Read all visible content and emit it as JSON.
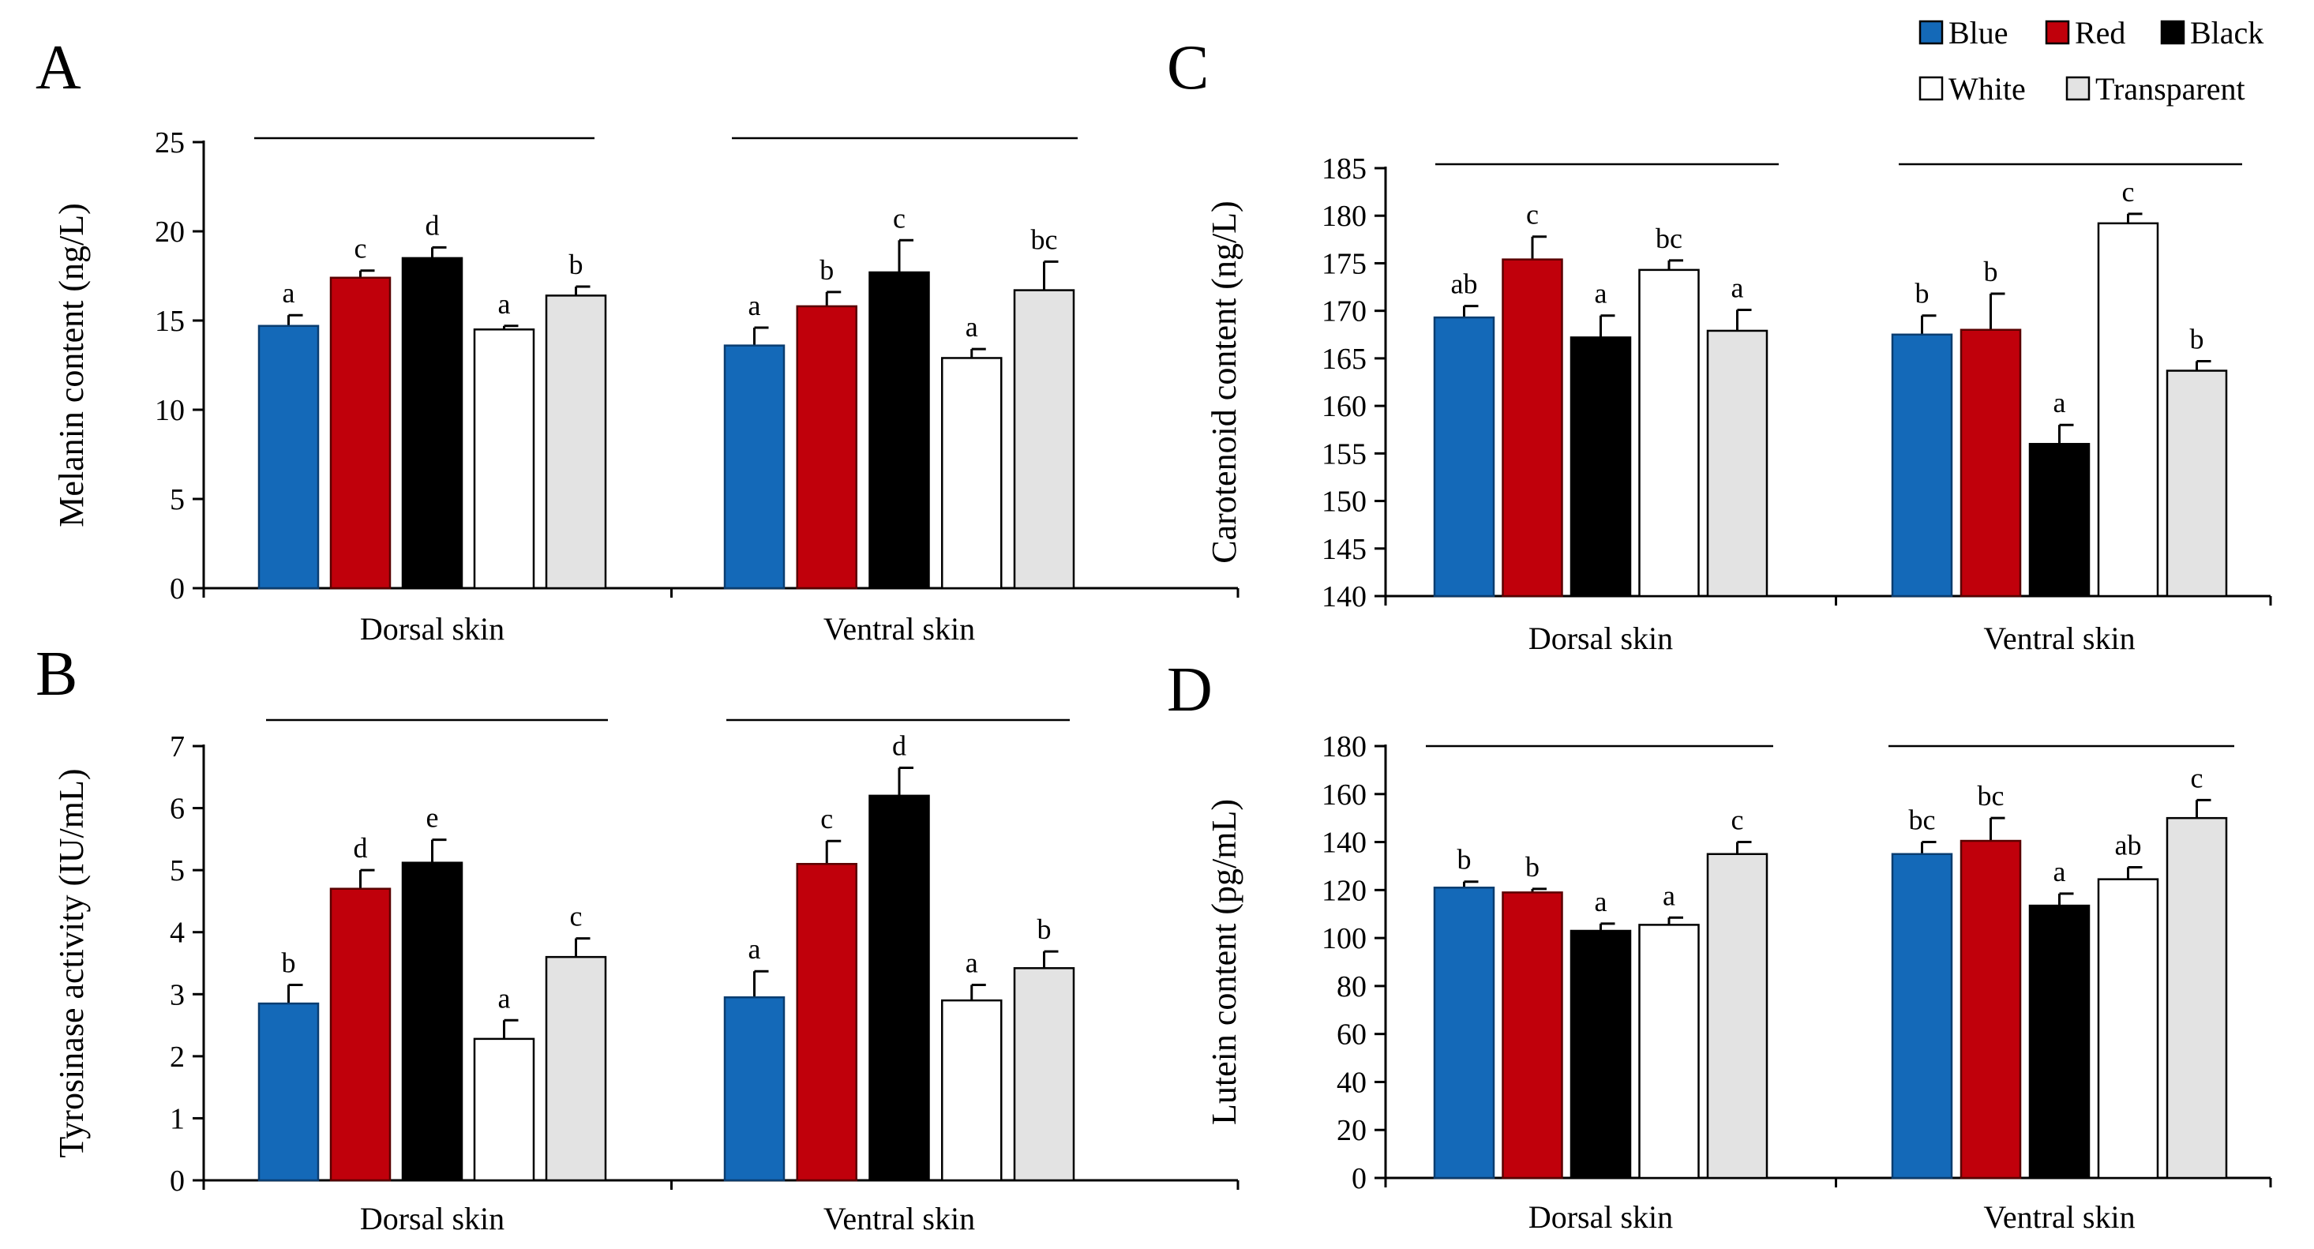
{
  "legend": [
    {
      "name": "Blue",
      "color": "#1469b8"
    },
    {
      "name": "Red",
      "color": "#c0000b"
    },
    {
      "name": "Black",
      "color": "#000000"
    },
    {
      "name": "White",
      "color": "#ffffff"
    },
    {
      "name": "Transparent",
      "color": "#e3e3e3"
    }
  ],
  "chart_data": [
    {
      "panel": "A",
      "type": "bar",
      "ylabel": "Melanin content (ng/L)",
      "ylim": [
        0,
        25
      ],
      "yticks": [
        0,
        5,
        10,
        15,
        20,
        25
      ],
      "groups": [
        "Dorsal skin",
        "Ventral skin"
      ],
      "series": [
        {
          "name": "Blue",
          "values": [
            14.7,
            13.6
          ],
          "errors": [
            0.6,
            1.0
          ],
          "letters": [
            "a",
            "a"
          ]
        },
        {
          "name": "Red",
          "values": [
            17.4,
            15.8
          ],
          "errors": [
            0.4,
            0.8
          ],
          "letters": [
            "c",
            "b"
          ]
        },
        {
          "name": "Black",
          "values": [
            18.5,
            17.7
          ],
          "errors": [
            0.6,
            1.8
          ],
          "letters": [
            "d",
            "c"
          ]
        },
        {
          "name": "White",
          "values": [
            14.5,
            12.9
          ],
          "errors": [
            0.2,
            0.5
          ],
          "letters": [
            "a",
            "a"
          ]
        },
        {
          "name": "Transparent",
          "values": [
            16.4,
            16.7
          ],
          "errors": [
            0.5,
            1.6
          ],
          "letters": [
            "b",
            "bc"
          ]
        }
      ]
    },
    {
      "panel": "B",
      "type": "bar",
      "ylabel": "Tyrosinase activity (IU/mL)",
      "ylim": [
        0,
        7
      ],
      "yticks": [
        0,
        1,
        2,
        3,
        4,
        5,
        6,
        7
      ],
      "groups": [
        "Dorsal skin",
        "Ventral skin"
      ],
      "series": [
        {
          "name": "Blue",
          "values": [
            2.85,
            2.95
          ],
          "errors": [
            0.3,
            0.42
          ],
          "letters": [
            "b",
            "a"
          ]
        },
        {
          "name": "Red",
          "values": [
            4.7,
            5.1
          ],
          "errors": [
            0.3,
            0.37
          ],
          "letters": [
            "d",
            "c"
          ]
        },
        {
          "name": "Black",
          "values": [
            5.12,
            6.2
          ],
          "errors": [
            0.37,
            0.45
          ],
          "letters": [
            "e",
            "d"
          ]
        },
        {
          "name": "White",
          "values": [
            2.28,
            2.9
          ],
          "errors": [
            0.3,
            0.25
          ],
          "letters": [
            "a",
            "a"
          ]
        },
        {
          "name": "Transparent",
          "values": [
            3.6,
            3.42
          ],
          "errors": [
            0.3,
            0.27
          ],
          "letters": [
            "c",
            "b"
          ]
        }
      ]
    },
    {
      "panel": "C",
      "type": "bar",
      "ylabel": "Carotenoid content (ng/L)",
      "ylim": [
        140,
        185
      ],
      "yticks": [
        140,
        145,
        150,
        155,
        160,
        165,
        170,
        175,
        180,
        185
      ],
      "groups": [
        "Dorsal skin",
        "Ventral skin"
      ],
      "series": [
        {
          "name": "Blue",
          "values": [
            169.3,
            167.5
          ],
          "errors": [
            1.2,
            2.0
          ],
          "letters": [
            "ab",
            "b"
          ]
        },
        {
          "name": "Red",
          "values": [
            175.4,
            168.0
          ],
          "errors": [
            2.4,
            3.8
          ],
          "letters": [
            "c",
            "b"
          ]
        },
        {
          "name": "Black",
          "values": [
            167.2,
            156.0
          ],
          "errors": [
            2.3,
            2.0
          ],
          "letters": [
            "a",
            "a"
          ]
        },
        {
          "name": "White",
          "values": [
            174.3,
            179.2
          ],
          "errors": [
            1.0,
            1.0
          ],
          "letters": [
            "bc",
            "c"
          ]
        },
        {
          "name": "Transparent",
          "values": [
            167.9,
            163.7
          ],
          "errors": [
            2.2,
            1.0
          ],
          "letters": [
            "a",
            "b"
          ]
        }
      ]
    },
    {
      "panel": "D",
      "type": "bar",
      "ylabel": "Lutein content (pg/mL)",
      "ylim": [
        0,
        180
      ],
      "yticks": [
        0,
        20,
        40,
        60,
        80,
        100,
        120,
        140,
        160,
        180
      ],
      "groups": [
        "Dorsal skin",
        "Ventral skin"
      ],
      "series": [
        {
          "name": "Blue",
          "values": [
            121,
            135
          ],
          "errors": [
            2.5,
            5
          ],
          "letters": [
            "b",
            "bc"
          ]
        },
        {
          "name": "Red",
          "values": [
            119,
            140.5
          ],
          "errors": [
            1.5,
            9.5
          ],
          "letters": [
            "b",
            "bc"
          ]
        },
        {
          "name": "Black",
          "values": [
            103,
            113.5
          ],
          "errors": [
            3,
            5
          ],
          "letters": [
            "a",
            "a"
          ]
        },
        {
          "name": "White",
          "values": [
            105.5,
            124.5
          ],
          "errors": [
            3,
            5
          ],
          "letters": [
            "a",
            "ab"
          ]
        },
        {
          "name": "Transparent",
          "values": [
            135,
            150
          ],
          "errors": [
            5,
            7.5
          ],
          "letters": [
            "c",
            "c"
          ]
        }
      ]
    }
  ]
}
